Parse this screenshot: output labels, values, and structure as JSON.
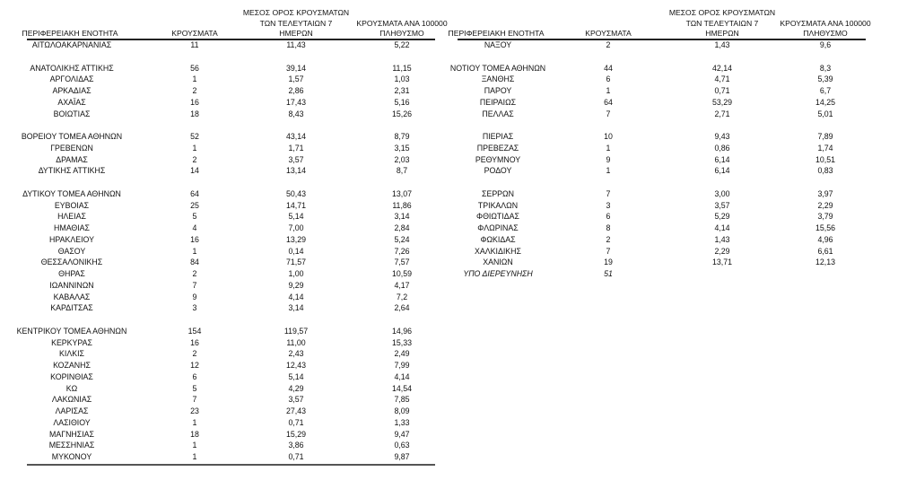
{
  "headers": {
    "region": "ΠΕΡΙΦΕΡΕΙΑΚΗ ΕΝΟΤΗΤΑ",
    "cases": "ΚΡΟΥΣΜΑΤΑ",
    "avg7_line1": "ΜΕΣΟΣ ΟΡΟΣ ΚΡΟΥΣΜΑΤΩΝ",
    "avg7_line2": "ΤΩΝ ΤΕΛΕΥΤΑΙΩΝ 7",
    "avg7_line3": "ΗΜΕΡΩΝ",
    "per100k_line1": "ΚΡΟΥΣΜΑΤΑ ΑΝΑ 100000",
    "per100k_line2": "ΠΛΗΘΥΣΜΟ"
  },
  "left_table": [
    [
      "ΑΙΤΩΛΟΑΚΑΡΝΑΝΙΑΣ",
      "11",
      "11,43",
      "5,22"
    ],
    null,
    [
      "ΑΝΑΤΟΛΙΚΗΣ ΑΤΤΙΚΗΣ",
      "56",
      "39,14",
      "11,15"
    ],
    [
      "ΑΡΓΟΛΙΔΑΣ",
      "1",
      "1,57",
      "1,03"
    ],
    [
      "ΑΡΚΑΔΙΑΣ",
      "2",
      "2,86",
      "2,31"
    ],
    [
      "ΑΧΑΪΑΣ",
      "16",
      "17,43",
      "5,16"
    ],
    [
      "ΒΟΙΩΤΙΑΣ",
      "18",
      "8,43",
      "15,26"
    ],
    null,
    [
      "ΒΟΡΕΙΟΥ ΤΟΜΕΑ ΑΘΗΝΩΝ",
      "52",
      "43,14",
      "8,79"
    ],
    [
      "ΓΡΕΒΕΝΩΝ",
      "1",
      "1,71",
      "3,15"
    ],
    [
      "ΔΡΑΜΑΣ",
      "2",
      "3,57",
      "2,03"
    ],
    [
      "ΔΥΤΙΚΗΣ ΑΤΤΙΚΗΣ",
      "14",
      "13,14",
      "8,7"
    ],
    null,
    [
      "ΔΥΤΙΚΟΥ ΤΟΜΕΑ ΑΘΗΝΩΝ",
      "64",
      "50,43",
      "13,07"
    ],
    [
      "ΕΥΒΟΙΑΣ",
      "25",
      "14,71",
      "11,86"
    ],
    [
      "ΗΛΕΙΑΣ",
      "5",
      "5,14",
      "3,14"
    ],
    [
      "ΗΜΑΘΙΑΣ",
      "4",
      "7,00",
      "2,84"
    ],
    [
      "ΗΡΑΚΛΕΙΟΥ",
      "16",
      "13,29",
      "5,24"
    ],
    [
      "ΘΑΣΟΥ",
      "1",
      "0,14",
      "7,26"
    ],
    [
      "ΘΕΣΣΑΛΟΝΙΚΗΣ",
      "84",
      "71,57",
      "7,57"
    ],
    [
      "ΘΗΡΑΣ",
      "2",
      "1,00",
      "10,59"
    ],
    [
      "ΙΩΑΝΝΙΝΩΝ",
      "7",
      "9,29",
      "4,17"
    ],
    [
      "ΚΑΒΑΛΑΣ",
      "9",
      "4,14",
      "7,2"
    ],
    [
      "ΚΑΡΔΙΤΣΑΣ",
      "3",
      "3,14",
      "2,64"
    ],
    null,
    [
      "ΚΕΝΤΡΙΚΟΥ ΤΟΜΕΑ ΑΘΗΝΩΝ",
      "154",
      "119,57",
      "14,96"
    ],
    [
      "ΚΕΡΚΥΡΑΣ",
      "16",
      "11,00",
      "15,33"
    ],
    [
      "ΚΙΛΚΙΣ",
      "2",
      "2,43",
      "2,49"
    ],
    [
      "ΚΟΖΑΝΗΣ",
      "12",
      "12,43",
      "7,99"
    ],
    [
      "ΚΟΡΙΝΘΙΑΣ",
      "6",
      "5,14",
      "4,14"
    ],
    [
      "ΚΩ",
      "5",
      "4,29",
      "14,54"
    ],
    [
      "ΛΑΚΩΝΙΑΣ",
      "7",
      "3,57",
      "7,85"
    ],
    [
      "ΛΑΡΙΣΑΣ",
      "23",
      "27,43",
      "8,09"
    ],
    [
      "ΛΑΣΙΘΙΟΥ",
      "1",
      "0,71",
      "1,33"
    ],
    [
      "ΜΑΓΝΗΣΙΑΣ",
      "18",
      "15,29",
      "9,47"
    ],
    [
      "ΜΕΣΣΗΝΙΑΣ",
      "1",
      "3,86",
      "0,63"
    ],
    [
      "ΜΥΚΟΝΟΥ",
      "1",
      "0,71",
      "9,87"
    ]
  ],
  "right_table": [
    [
      "ΝΑΞΟΥ",
      "2",
      "1,43",
      "9,6"
    ],
    null,
    [
      "ΝΟΤΙΟΥ ΤΟΜΕΑ ΑΘΗΝΩΝ",
      "44",
      "42,14",
      "8,3"
    ],
    [
      "ΞΑΝΘΗΣ",
      "6",
      "4,71",
      "5,39"
    ],
    [
      "ΠΑΡΟΥ",
      "1",
      "0,71",
      "6,7"
    ],
    [
      "ΠΕΙΡΑΙΩΣ",
      "64",
      "53,29",
      "14,25"
    ],
    [
      "ΠΕΛΛΑΣ",
      "7",
      "2,71",
      "5,01"
    ],
    null,
    [
      "ΠΙΕΡΙΑΣ",
      "10",
      "9,43",
      "7,89"
    ],
    [
      "ΠΡΕΒΕΖΑΣ",
      "1",
      "0,86",
      "1,74"
    ],
    [
      "ΡΕΘΥΜΝΟΥ",
      "9",
      "6,14",
      "10,51"
    ],
    [
      "ΡΟΔΟΥ",
      "1",
      "6,14",
      "0,83"
    ],
    null,
    [
      "ΣΕΡΡΩΝ",
      "7",
      "3,00",
      "3,97"
    ],
    [
      "ΤΡΙΚΑΛΩΝ",
      "3",
      "3,57",
      "2,29"
    ],
    [
      "ΦΘΙΩΤΙΔΑΣ",
      "6",
      "5,29",
      "3,79"
    ],
    [
      "ΦΛΩΡΙΝΑΣ",
      "8",
      "4,14",
      "15,56"
    ],
    [
      "ΦΩΚΙΔΑΣ",
      "2",
      "1,43",
      "4,96"
    ],
    [
      "ΧΑΛΚΙΔΙΚΗΣ",
      "7",
      "2,29",
      "6,61"
    ],
    [
      "ΧΑΝΙΩΝ",
      "19",
      "13,71",
      "12,13"
    ],
    [
      "ΥΠΟ ΔΙΕΡΕΥΝΗΣΗ",
      "51",
      "",
      ""
    ]
  ]
}
